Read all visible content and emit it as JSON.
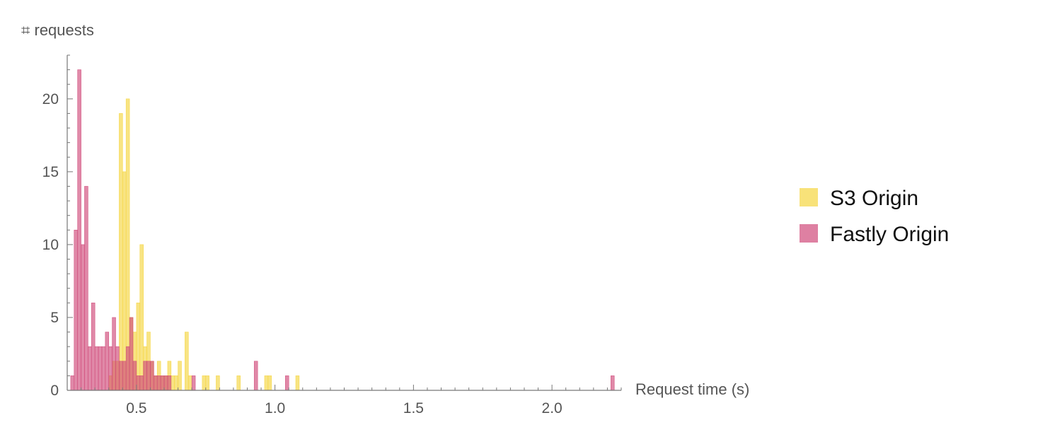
{
  "chart_data": {
    "type": "bar",
    "ylabel": "⌗ requests",
    "xlabel": "Request time (s)",
    "xlim": [
      0.25,
      2.25
    ],
    "ylim": [
      0,
      23
    ],
    "bin_width": 0.0125,
    "x_ticks": [
      {
        "value": 0.5,
        "label": "0.5"
      },
      {
        "value": 1.0,
        "label": "1.0"
      },
      {
        "value": 1.5,
        "label": "1.5"
      },
      {
        "value": 2.0,
        "label": "2.0"
      }
    ],
    "y_ticks": [
      {
        "value": 0,
        "label": "0"
      },
      {
        "value": 5,
        "label": "5"
      },
      {
        "value": 10,
        "label": "10"
      },
      {
        "value": 15,
        "label": "15"
      },
      {
        "value": 20,
        "label": "20"
      }
    ],
    "grid": false,
    "legend_position": "right",
    "series": [
      {
        "name": "S3 Origin",
        "color": "#f5d540",
        "bins": [
          {
            "x": 0.4,
            "count": 1
          },
          {
            "x": 0.4125,
            "count": 2
          },
          {
            "x": 0.425,
            "count": 2
          },
          {
            "x": 0.4375,
            "count": 19
          },
          {
            "x": 0.45,
            "count": 15
          },
          {
            "x": 0.4625,
            "count": 20
          },
          {
            "x": 0.475,
            "count": 5
          },
          {
            "x": 0.4875,
            "count": 4
          },
          {
            "x": 0.5,
            "count": 6
          },
          {
            "x": 0.5125,
            "count": 10
          },
          {
            "x": 0.525,
            "count": 3
          },
          {
            "x": 0.5375,
            "count": 4
          },
          {
            "x": 0.55,
            "count": 2
          },
          {
            "x": 0.5625,
            "count": 1
          },
          {
            "x": 0.575,
            "count": 2
          },
          {
            "x": 0.5875,
            "count": 1
          },
          {
            "x": 0.6,
            "count": 1
          },
          {
            "x": 0.6125,
            "count": 2
          },
          {
            "x": 0.625,
            "count": 1
          },
          {
            "x": 0.6375,
            "count": 1
          },
          {
            "x": 0.65,
            "count": 2
          },
          {
            "x": 0.675,
            "count": 4
          },
          {
            "x": 0.6875,
            "count": 1
          },
          {
            "x": 0.7375,
            "count": 1
          },
          {
            "x": 0.75,
            "count": 1
          },
          {
            "x": 0.7875,
            "count": 1
          },
          {
            "x": 0.8625,
            "count": 1
          },
          {
            "x": 0.9625,
            "count": 1
          },
          {
            "x": 0.975,
            "count": 1
          },
          {
            "x": 1.075,
            "count": 1
          }
        ]
      },
      {
        "name": "Fastly Origin",
        "color": "#d04a7a",
        "bins": [
          {
            "x": 0.2625,
            "count": 1
          },
          {
            "x": 0.275,
            "count": 11
          },
          {
            "x": 0.2875,
            "count": 22
          },
          {
            "x": 0.3,
            "count": 10
          },
          {
            "x": 0.3125,
            "count": 14
          },
          {
            "x": 0.325,
            "count": 3
          },
          {
            "x": 0.3375,
            "count": 6
          },
          {
            "x": 0.35,
            "count": 3
          },
          {
            "x": 0.3625,
            "count": 3
          },
          {
            "x": 0.375,
            "count": 3
          },
          {
            "x": 0.3875,
            "count": 4
          },
          {
            "x": 0.4,
            "count": 3
          },
          {
            "x": 0.4125,
            "count": 5
          },
          {
            "x": 0.425,
            "count": 3
          },
          {
            "x": 0.4375,
            "count": 2
          },
          {
            "x": 0.45,
            "count": 2
          },
          {
            "x": 0.4625,
            "count": 3
          },
          {
            "x": 0.475,
            "count": 5
          },
          {
            "x": 0.4875,
            "count": 2
          },
          {
            "x": 0.5,
            "count": 1
          },
          {
            "x": 0.5125,
            "count": 1
          },
          {
            "x": 0.525,
            "count": 2
          },
          {
            "x": 0.5375,
            "count": 2
          },
          {
            "x": 0.55,
            "count": 2
          },
          {
            "x": 0.5625,
            "count": 1
          },
          {
            "x": 0.575,
            "count": 1
          },
          {
            "x": 0.5875,
            "count": 1
          },
          {
            "x": 0.6,
            "count": 1
          },
          {
            "x": 0.6125,
            "count": 1
          },
          {
            "x": 0.7,
            "count": 1
          },
          {
            "x": 0.925,
            "count": 2
          },
          {
            "x": 1.0375,
            "count": 1
          },
          {
            "x": 2.2125,
            "count": 1
          }
        ]
      }
    ]
  }
}
